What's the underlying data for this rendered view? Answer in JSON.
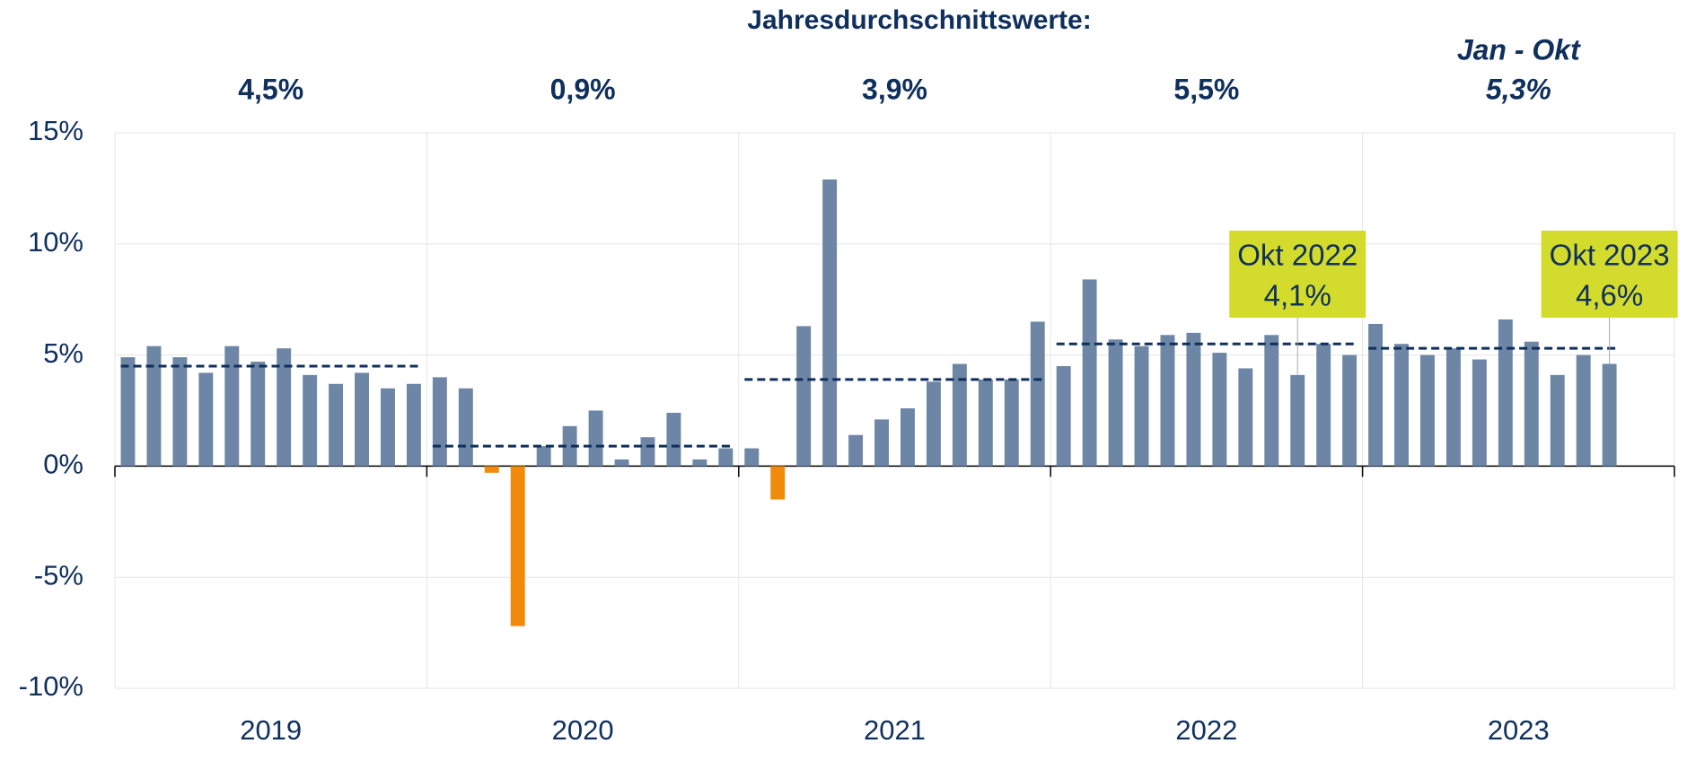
{
  "chart_data": {
    "type": "bar",
    "title": "Jahresdurchschnittswerte:",
    "ylim": [
      -10,
      15
    ],
    "yticks": [
      {
        "value": -10,
        "label": "-10%"
      },
      {
        "value": -5,
        "label": "-5%"
      },
      {
        "value": 0,
        "label": "0%"
      },
      {
        "value": 5,
        "label": "5%"
      },
      {
        "value": 10,
        "label": "10%"
      },
      {
        "value": 15,
        "label": "15%"
      }
    ],
    "grid": true,
    "positive_color": "#6d86a5",
    "negative_color": "#f08a0b",
    "average_color": "#0f2f5c",
    "annotation_color": "#d3dc2c",
    "months_per_group": 12,
    "groups": [
      {
        "label": "2019",
        "average": 4.5,
        "average_label": "4,5%",
        "values": [
          4.9,
          5.4,
          4.9,
          4.2,
          5.4,
          4.7,
          5.3,
          4.1,
          3.7,
          4.2,
          3.5,
          3.7
        ]
      },
      {
        "label": "2020",
        "average": 0.9,
        "average_label": "0,9%",
        "values": [
          4.0,
          3.5,
          -0.3,
          -7.2,
          0.9,
          1.8,
          2.5,
          0.3,
          1.3,
          2.4,
          0.3,
          0.8
        ]
      },
      {
        "label": "2021",
        "average": 3.9,
        "average_label": "3,9%",
        "values": [
          0.8,
          -1.5,
          6.3,
          12.9,
          1.4,
          2.1,
          2.6,
          3.8,
          4.6,
          3.9,
          3.9,
          6.5
        ]
      },
      {
        "label": "2022",
        "average": 5.5,
        "average_label": "5,5%",
        "values": [
          4.5,
          8.4,
          5.7,
          5.4,
          5.9,
          6.0,
          5.1,
          4.4,
          5.9,
          4.1,
          5.5,
          5.0
        ],
        "annotation": {
          "text": "Okt 2022",
          "value_label": "4,1%",
          "value": 4.1
        }
      },
      {
        "label": "2023",
        "average": 5.3,
        "average_label": "5,3%",
        "average_note": "Jan - Okt",
        "values": [
          6.4,
          5.5,
          5.0,
          5.3,
          4.8,
          6.6,
          5.6,
          4.1,
          5.0,
          4.6
        ],
        "annotation": {
          "text": "Okt 2023",
          "value_label": "4,6%",
          "value": 4.6
        }
      }
    ]
  }
}
